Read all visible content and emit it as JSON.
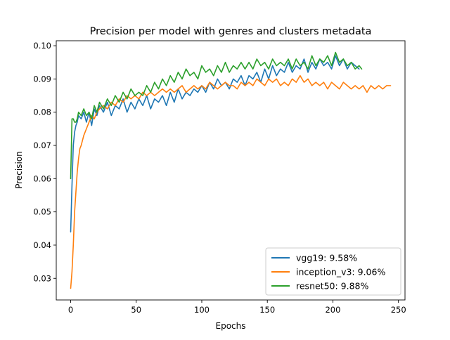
{
  "chart_data": {
    "type": "line",
    "title": "Precision per model with genres and clusters metadata",
    "xlabel": "Epochs",
    "ylabel": "Precision",
    "xlim": [
      -11,
      255
    ],
    "ylim": [
      0.0235,
      0.1015
    ],
    "xticks": [
      0,
      50,
      100,
      150,
      200,
      250
    ],
    "xtick_labels": [
      "0",
      "50",
      "100",
      "150",
      "200",
      "250"
    ],
    "yticks": [
      0.03,
      0.04,
      0.05,
      0.06,
      0.07,
      0.08,
      0.09,
      0.1
    ],
    "ytick_labels": [
      "0.03",
      "0.04",
      "0.05",
      "0.06",
      "0.07",
      "0.08",
      "0.09",
      "0.10"
    ],
    "grid": false,
    "legend_position": "lower-right",
    "series": [
      {
        "name": "vgg19: 9.58%",
        "color": "#1f77b4",
        "x": [
          0,
          1,
          2,
          3,
          4,
          5,
          6,
          8,
          10,
          12,
          14,
          16,
          18,
          20,
          22,
          25,
          28,
          31,
          34,
          37,
          40,
          43,
          46,
          49,
          52,
          55,
          58,
          61,
          64,
          67,
          70,
          73,
          76,
          79,
          82,
          85,
          88,
          91,
          94,
          97,
          100,
          103,
          106,
          109,
          112,
          115,
          118,
          121,
          124,
          127,
          130,
          133,
          136,
          139,
          142,
          145,
          148,
          151,
          154,
          157,
          160,
          163,
          166,
          169,
          172,
          175,
          178,
          181,
          184,
          187,
          190,
          193,
          196,
          199,
          202,
          205,
          208,
          211,
          214,
          217,
          220
        ],
        "values": [
          0.044,
          0.058,
          0.07,
          0.074,
          0.076,
          0.077,
          0.079,
          0.078,
          0.08,
          0.077,
          0.08,
          0.076,
          0.081,
          0.079,
          0.082,
          0.08,
          0.083,
          0.079,
          0.082,
          0.081,
          0.084,
          0.08,
          0.083,
          0.081,
          0.084,
          0.082,
          0.085,
          0.081,
          0.084,
          0.083,
          0.085,
          0.082,
          0.086,
          0.083,
          0.087,
          0.084,
          0.086,
          0.085,
          0.087,
          0.086,
          0.088,
          0.086,
          0.089,
          0.087,
          0.09,
          0.088,
          0.089,
          0.087,
          0.09,
          0.089,
          0.091,
          0.088,
          0.091,
          0.09,
          0.092,
          0.089,
          0.093,
          0.09,
          0.094,
          0.091,
          0.093,
          0.092,
          0.095,
          0.092,
          0.094,
          0.093,
          0.096,
          0.092,
          0.095,
          0.093,
          0.096,
          0.094,
          0.095,
          0.093,
          0.097,
          0.094,
          0.096,
          0.093,
          0.095,
          0.094,
          0.093
        ]
      },
      {
        "name": "inception_v3: 9.06%",
        "color": "#ff7f0e",
        "x": [
          0,
          1,
          2,
          3,
          4,
          5,
          6,
          7,
          8,
          10,
          12,
          14,
          16,
          18,
          20,
          22,
          25,
          28,
          31,
          34,
          37,
          40,
          43,
          46,
          49,
          52,
          55,
          58,
          61,
          64,
          67,
          70,
          73,
          76,
          79,
          82,
          85,
          88,
          91,
          94,
          97,
          100,
          103,
          106,
          109,
          112,
          115,
          118,
          121,
          124,
          127,
          130,
          133,
          136,
          139,
          142,
          145,
          148,
          151,
          154,
          157,
          160,
          163,
          166,
          169,
          172,
          175,
          178,
          181,
          184,
          187,
          190,
          193,
          196,
          199,
          202,
          205,
          208,
          211,
          214,
          217,
          220,
          223,
          226,
          229,
          232,
          235,
          238,
          241,
          244
        ],
        "values": [
          0.027,
          0.032,
          0.04,
          0.05,
          0.056,
          0.062,
          0.066,
          0.069,
          0.07,
          0.073,
          0.075,
          0.077,
          0.079,
          0.078,
          0.08,
          0.081,
          0.082,
          0.081,
          0.083,
          0.082,
          0.084,
          0.083,
          0.085,
          0.084,
          0.085,
          0.084,
          0.086,
          0.085,
          0.086,
          0.085,
          0.086,
          0.087,
          0.086,
          0.087,
          0.086,
          0.087,
          0.088,
          0.086,
          0.087,
          0.088,
          0.087,
          0.088,
          0.087,
          0.089,
          0.088,
          0.087,
          0.088,
          0.089,
          0.088,
          0.088,
          0.087,
          0.089,
          0.088,
          0.089,
          0.088,
          0.09,
          0.089,
          0.088,
          0.09,
          0.089,
          0.09,
          0.088,
          0.089,
          0.088,
          0.09,
          0.089,
          0.091,
          0.089,
          0.09,
          0.088,
          0.089,
          0.088,
          0.089,
          0.087,
          0.089,
          0.088,
          0.087,
          0.089,
          0.088,
          0.087,
          0.088,
          0.087,
          0.088,
          0.086,
          0.088,
          0.087,
          0.088,
          0.087,
          0.088,
          0.088
        ]
      },
      {
        "name": "resnet50: 9.88%",
        "color": "#2ca02c",
        "x": [
          0,
          1,
          2,
          3,
          4,
          5,
          6,
          8,
          10,
          12,
          14,
          16,
          18,
          20,
          22,
          25,
          28,
          31,
          34,
          37,
          40,
          43,
          46,
          49,
          52,
          55,
          58,
          61,
          64,
          67,
          70,
          73,
          76,
          79,
          82,
          85,
          88,
          91,
          94,
          97,
          100,
          103,
          106,
          109,
          112,
          115,
          118,
          121,
          124,
          127,
          130,
          133,
          136,
          139,
          142,
          145,
          148,
          151,
          154,
          157,
          160,
          163,
          166,
          169,
          172,
          175,
          178,
          181,
          184,
          187,
          190,
          193,
          196,
          199,
          202,
          205,
          208,
          211,
          214,
          217,
          220,
          222
        ],
        "values": [
          0.06,
          0.078,
          0.078,
          0.077,
          0.077,
          0.078,
          0.08,
          0.079,
          0.081,
          0.079,
          0.08,
          0.078,
          0.082,
          0.08,
          0.083,
          0.081,
          0.084,
          0.082,
          0.085,
          0.083,
          0.086,
          0.084,
          0.087,
          0.085,
          0.086,
          0.085,
          0.088,
          0.086,
          0.089,
          0.087,
          0.09,
          0.088,
          0.091,
          0.089,
          0.092,
          0.09,
          0.093,
          0.091,
          0.092,
          0.09,
          0.094,
          0.092,
          0.093,
          0.091,
          0.094,
          0.092,
          0.095,
          0.092,
          0.094,
          0.093,
          0.095,
          0.093,
          0.095,
          0.093,
          0.096,
          0.094,
          0.095,
          0.093,
          0.096,
          0.094,
          0.095,
          0.094,
          0.096,
          0.093,
          0.096,
          0.094,
          0.095,
          0.093,
          0.097,
          0.094,
          0.096,
          0.095,
          0.097,
          0.094,
          0.098,
          0.095,
          0.096,
          0.094,
          0.095,
          0.093,
          0.094,
          0.093
        ]
      }
    ]
  }
}
